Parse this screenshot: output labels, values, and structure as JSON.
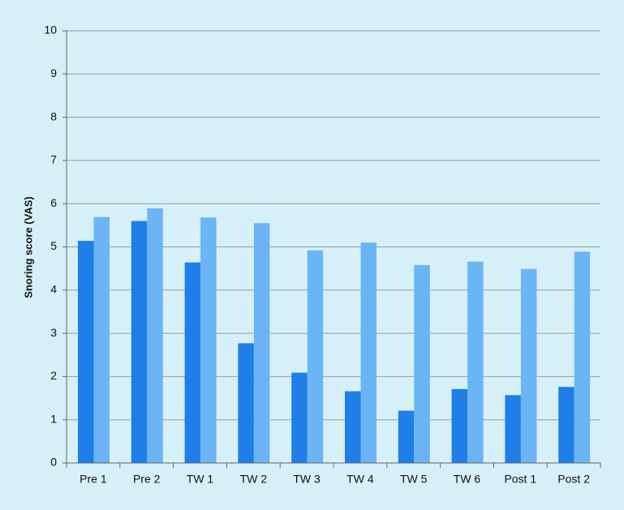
{
  "chart_data": {
    "type": "bar",
    "y_label": "Snoring score (VAS)",
    "categories": [
      "Pre 1",
      "Pre 2",
      "TW 1",
      "TW 2",
      "TW 3",
      "TW 4",
      "TW 5",
      "TW 6",
      "Post 1",
      "Post 2"
    ],
    "series": [
      {
        "color": "#1f7ee8",
        "values": [
          5.14,
          5.6,
          4.64,
          2.77,
          2.09,
          1.66,
          1.21,
          1.71,
          1.57,
          1.76
        ]
      },
      {
        "color": "#6bb5f6",
        "values": [
          5.69,
          5.89,
          5.68,
          5.55,
          4.92,
          5.1,
          4.58,
          4.66,
          4.49,
          4.89
        ]
      }
    ],
    "ylim": [
      0,
      10
    ],
    "yticks": [
      0,
      1,
      2,
      3,
      4,
      5,
      6,
      7,
      8,
      9,
      10
    ],
    "grid": true
  }
}
